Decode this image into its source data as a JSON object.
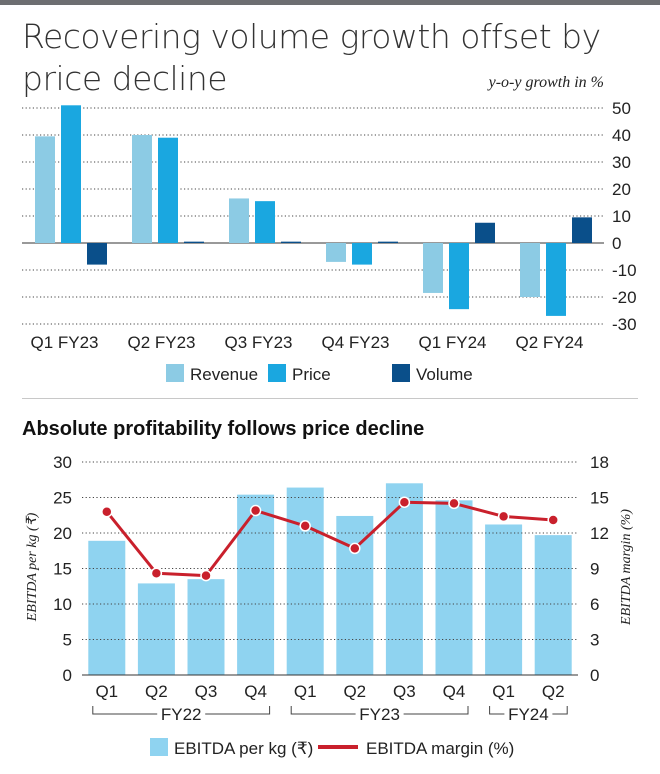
{
  "colors": {
    "revenue": "#8ccbe4",
    "price": "#1aa7e0",
    "volume": "#0a4f8a",
    "ebitda_bar": "#8fd3f0",
    "margin_line": "#c9202c"
  },
  "chart_data": [
    {
      "type": "bar",
      "title": "Recovering volume growth offset by price decline",
      "unit_label": "y-o-y growth in %",
      "categories": [
        "Q1 FY23",
        "Q2 FY23",
        "Q3 FY23",
        "Q4 FY23",
        "Q1 FY24",
        "Q2 FY24"
      ],
      "series": [
        {
          "name": "Revenue",
          "values": [
            39.5,
            40,
            16.5,
            -7,
            -18.5,
            -20
          ]
        },
        {
          "name": "Price",
          "values": [
            51,
            39,
            15.5,
            -8,
            -24.5,
            -27
          ]
        },
        {
          "name": "Volume",
          "values": [
            -8,
            0.5,
            0.5,
            0.5,
            7.5,
            9.5
          ]
        }
      ],
      "ylim": [
        -30,
        50
      ],
      "yticks": [
        "50",
        "40",
        "30",
        "20",
        "10",
        "0",
        "-10",
        "-20",
        "-30"
      ],
      "ytick_values": [
        50,
        40,
        30,
        20,
        10,
        0,
        -10,
        -20,
        -30
      ],
      "y_axis_side": "right",
      "legend_position": "bottom"
    },
    {
      "type": "bar+line",
      "title": "Absolute profitability follows price decline",
      "categories": [
        "Q1",
        "Q2",
        "Q3",
        "Q4",
        "Q1",
        "Q2",
        "Q3",
        "Q4",
        "Q1",
        "Q2"
      ],
      "groups": [
        {
          "label": "FY22",
          "from": 0,
          "to": 3
        },
        {
          "label": "FY23",
          "from": 4,
          "to": 7
        },
        {
          "label": "FY24",
          "from": 8,
          "to": 9
        }
      ],
      "series": [
        {
          "name": "EBITDA per kg (₹)",
          "type": "bar",
          "axis": "left",
          "values": [
            18.9,
            12.9,
            13.5,
            25.4,
            26.4,
            22.4,
            27,
            24.6,
            21.2,
            19.7
          ]
        },
        {
          "name": "EBITDA margin (%)",
          "type": "line",
          "axis": "right",
          "values": [
            13.8,
            8.6,
            8.4,
            13.9,
            12.6,
            10.7,
            14.6,
            14.5,
            13.4,
            13.1
          ]
        }
      ],
      "ylabel_left": "EBITDA per kg (₹)",
      "ylabel_right": "EBITDA margin (%)",
      "ylim_left": [
        0,
        30
      ],
      "ylim_right": [
        0,
        18
      ],
      "yticks_left": [
        "30",
        "25",
        "20",
        "15",
        "10",
        "5",
        "0"
      ],
      "yticks_left_values": [
        30,
        25,
        20,
        15,
        10,
        5,
        0
      ],
      "yticks_right": [
        "18",
        "15",
        "12",
        "9",
        "6",
        "3",
        "0"
      ],
      "yticks_right_values": [
        18,
        15,
        12,
        9,
        6,
        3,
        0
      ],
      "legend_position": "bottom"
    }
  ]
}
